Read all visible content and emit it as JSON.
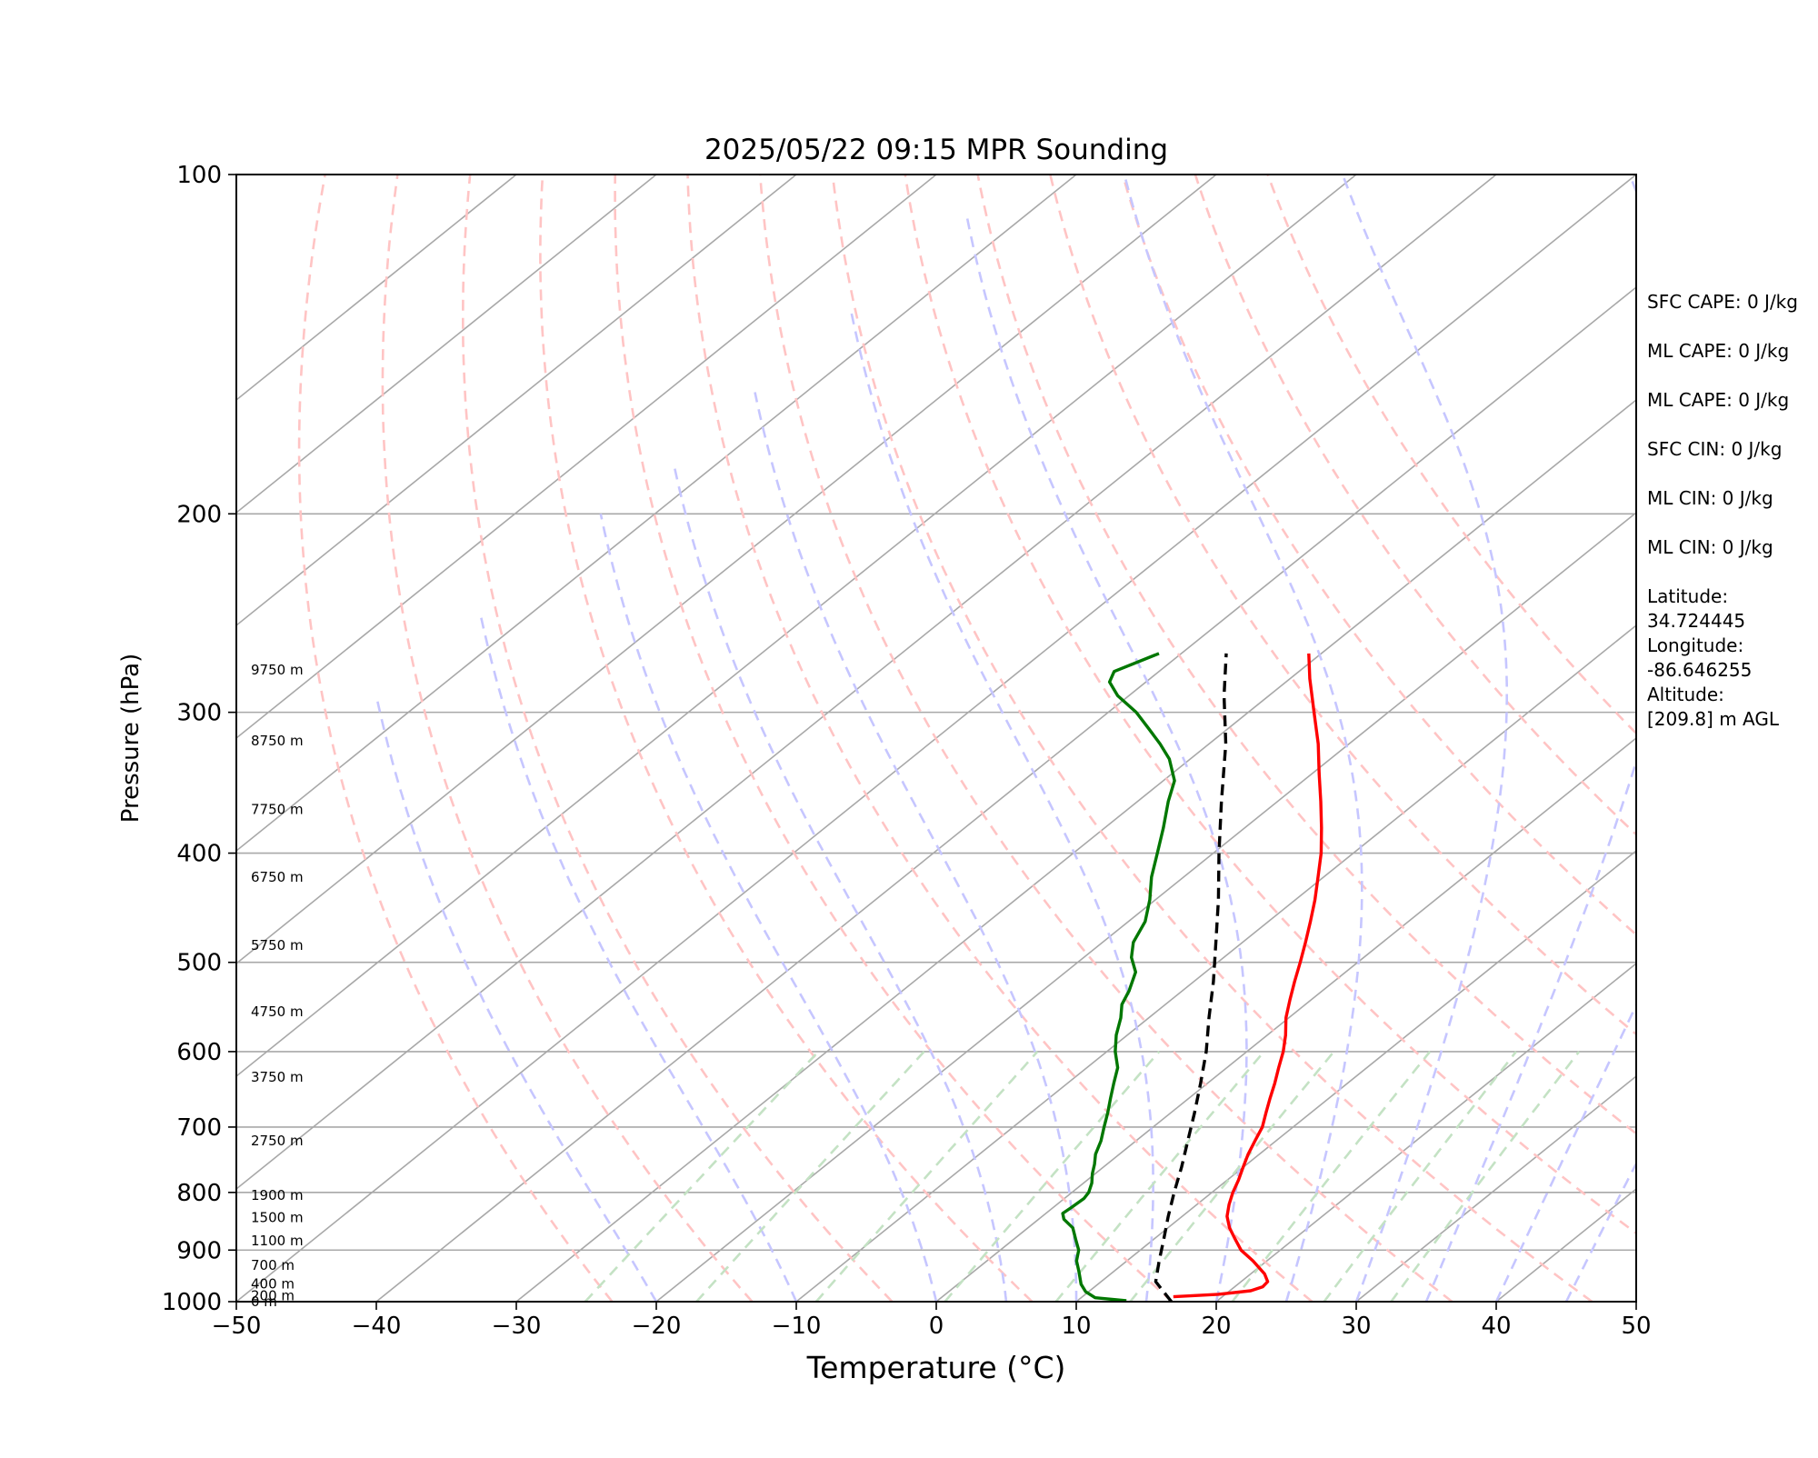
{
  "chart_data": {
    "type": "line",
    "title": "2025/05/22 09:15 MPR Sounding",
    "xlabel": "Temperature (°C)",
    "ylabel": "Pressure (hPa)",
    "xlim": [
      -50,
      50
    ],
    "ylim": [
      1000,
      100
    ],
    "y_scale": "log",
    "xticks": [
      -50,
      -40,
      -30,
      -20,
      -10,
      0,
      10,
      20,
      30,
      40,
      50
    ],
    "xtick_labels": [
      "−50",
      "−40",
      "−30",
      "−20",
      "−10",
      "0",
      "10",
      "20",
      "30",
      "40",
      "50"
    ],
    "yticks": [
      1000,
      900,
      800,
      700,
      600,
      500,
      400,
      300,
      200,
      100
    ],
    "ytick_labels": [
      "1000",
      "900",
      "800",
      "700",
      "600",
      "500",
      "400",
      "300",
      "200",
      "100"
    ],
    "skew_deg_per_log": 100,
    "series": [
      {
        "color": "#ff0000",
        "style": "solid",
        "points": [
          [
            990,
            16.5
          ],
          [
            985,
            19.5
          ],
          [
            978,
            21.5
          ],
          [
            970,
            22.0
          ],
          [
            960,
            21.9
          ],
          [
            945,
            21.0
          ],
          [
            920,
            19.0
          ],
          [
            900,
            17.2
          ],
          [
            880,
            15.8
          ],
          [
            860,
            14.4
          ],
          [
            840,
            13.2
          ],
          [
            820,
            12.3
          ],
          [
            800,
            11.5
          ],
          [
            780,
            10.8
          ],
          [
            760,
            10.0
          ],
          [
            740,
            9.2
          ],
          [
            720,
            8.5
          ],
          [
            700,
            7.8
          ],
          [
            680,
            6.8
          ],
          [
            660,
            5.8
          ],
          [
            640,
            4.8
          ],
          [
            620,
            3.7
          ],
          [
            600,
            2.6
          ],
          [
            580,
            1.3
          ],
          [
            560,
            -0.2
          ],
          [
            540,
            -1.5
          ],
          [
            520,
            -2.8
          ],
          [
            500,
            -4.1
          ],
          [
            480,
            -5.5
          ],
          [
            460,
            -7.0
          ],
          [
            440,
            -8.6
          ],
          [
            420,
            -10.4
          ],
          [
            400,
            -12.3
          ],
          [
            380,
            -14.5
          ],
          [
            360,
            -16.9
          ],
          [
            340,
            -19.5
          ],
          [
            320,
            -22.2
          ],
          [
            300,
            -25.3
          ],
          [
            280,
            -28.6
          ],
          [
            266,
            -30.9
          ]
        ]
      },
      {
        "color": "#007700",
        "style": "solid",
        "points": [
          [
            998,
            13.5
          ],
          [
            992,
            11.0
          ],
          [
            980,
            9.8
          ],
          [
            965,
            8.8
          ],
          [
            940,
            7.5
          ],
          [
            920,
            6.4
          ],
          [
            900,
            5.6
          ],
          [
            880,
            4.4
          ],
          [
            860,
            3.2
          ],
          [
            845,
            1.8
          ],
          [
            835,
            1.2
          ],
          [
            825,
            1.3
          ],
          [
            810,
            1.4
          ],
          [
            800,
            1.2
          ],
          [
            785,
            0.6
          ],
          [
            770,
            -0.2
          ],
          [
            755,
            -0.9
          ],
          [
            740,
            -1.7
          ],
          [
            720,
            -2.5
          ],
          [
            700,
            -3.5
          ],
          [
            680,
            -4.5
          ],
          [
            660,
            -5.6
          ],
          [
            640,
            -6.7
          ],
          [
            620,
            -7.8
          ],
          [
            600,
            -9.4
          ],
          [
            580,
            -10.8
          ],
          [
            560,
            -12.0
          ],
          [
            545,
            -13.1
          ],
          [
            530,
            -13.8
          ],
          [
            510,
            -15.0
          ],
          [
            495,
            -16.6
          ],
          [
            480,
            -17.8
          ],
          [
            460,
            -18.8
          ],
          [
            440,
            -20.4
          ],
          [
            420,
            -22.3
          ],
          [
            400,
            -24.0
          ],
          [
            380,
            -25.8
          ],
          [
            360,
            -27.8
          ],
          [
            345,
            -29.2
          ],
          [
            330,
            -31.5
          ],
          [
            320,
            -33.5
          ],
          [
            310,
            -35.7
          ],
          [
            300,
            -38.0
          ],
          [
            290,
            -40.8
          ],
          [
            282,
            -42.6
          ],
          [
            276,
            -43.2
          ],
          [
            266,
            -41.6
          ]
        ]
      },
      {
        "color": "#000000",
        "style": "dashed",
        "points": [
          [
            1000,
            16.8
          ],
          [
            960,
            13.9
          ],
          [
            920,
            12.3
          ],
          [
            880,
            10.7
          ],
          [
            840,
            9.0
          ],
          [
            800,
            7.3
          ],
          [
            760,
            5.6
          ],
          [
            720,
            3.7
          ],
          [
            680,
            1.7
          ],
          [
            640,
            -0.5
          ],
          [
            600,
            -2.9
          ],
          [
            560,
            -5.7
          ],
          [
            520,
            -8.6
          ],
          [
            480,
            -11.9
          ],
          [
            440,
            -15.5
          ],
          [
            400,
            -19.6
          ],
          [
            360,
            -24.0
          ],
          [
            320,
            -28.8
          ],
          [
            290,
            -33.2
          ],
          [
            266,
            -36.8
          ]
        ]
      }
    ],
    "height_labels": [
      {
        "p": 1000,
        "text": "0 m"
      },
      {
        "p": 988,
        "text": "200 m"
      },
      {
        "p": 964,
        "text": "400 m"
      },
      {
        "p": 928,
        "text": "700 m"
      },
      {
        "p": 883,
        "text": "1100 m"
      },
      {
        "p": 842,
        "text": "1500 m"
      },
      {
        "p": 805,
        "text": "1900 m"
      },
      {
        "p": 720,
        "text": "2750 m"
      },
      {
        "p": 632,
        "text": "3750 m"
      },
      {
        "p": 553,
        "text": "4750 m"
      },
      {
        "p": 483,
        "text": "5750 m"
      },
      {
        "p": 420,
        "text": "6750 m"
      },
      {
        "p": 366,
        "text": "7750 m"
      },
      {
        "p": 318,
        "text": "8750 m"
      },
      {
        "p": 275,
        "text": "9750 m"
      }
    ],
    "annotations": [
      "SFC CAPE: 0 J/kg",
      "ML CAPE: 0 J/kg",
      "ML CAPE: 0 J/kg",
      "SFC CIN: 0 J/kg",
      "ML CIN: 0 J/kg",
      "ML CIN: 0 J/kg",
      [
        "Latitude:",
        "34.724445"
      ],
      [
        "Longitude:",
        "-86.646255"
      ],
      [
        "Altitude:",
        "[209.8] m AGL"
      ]
    ],
    "isotherms": [
      -130,
      -120,
      -110,
      -100,
      -90,
      -80,
      -70,
      -60,
      -50,
      -40,
      -30,
      -20,
      -10,
      0,
      10,
      20,
      30,
      40,
      50
    ],
    "dry_adiabats_K": [
      250,
      260,
      270,
      280,
      290,
      300,
      310,
      320,
      330,
      340,
      350,
      360,
      370,
      380
    ],
    "moist_adiabats_C": [
      -20,
      -10,
      0,
      5,
      10,
      15,
      20,
      25,
      30,
      35,
      40,
      45
    ],
    "mixing_ratios_gkg": [
      0.5,
      1,
      2,
      4,
      7,
      10,
      16,
      24,
      32
    ],
    "colors": {
      "temperature": "#ff0000",
      "dewpoint": "#007700",
      "parcel": "#000000",
      "isotherm": "#a8a8a8",
      "dry_adiabat": "#ffc4c4",
      "moist_adiabat": "#c6c6ff",
      "mixing_ratio": "#c4e2c4",
      "isobar": "#a8a8a8"
    }
  }
}
